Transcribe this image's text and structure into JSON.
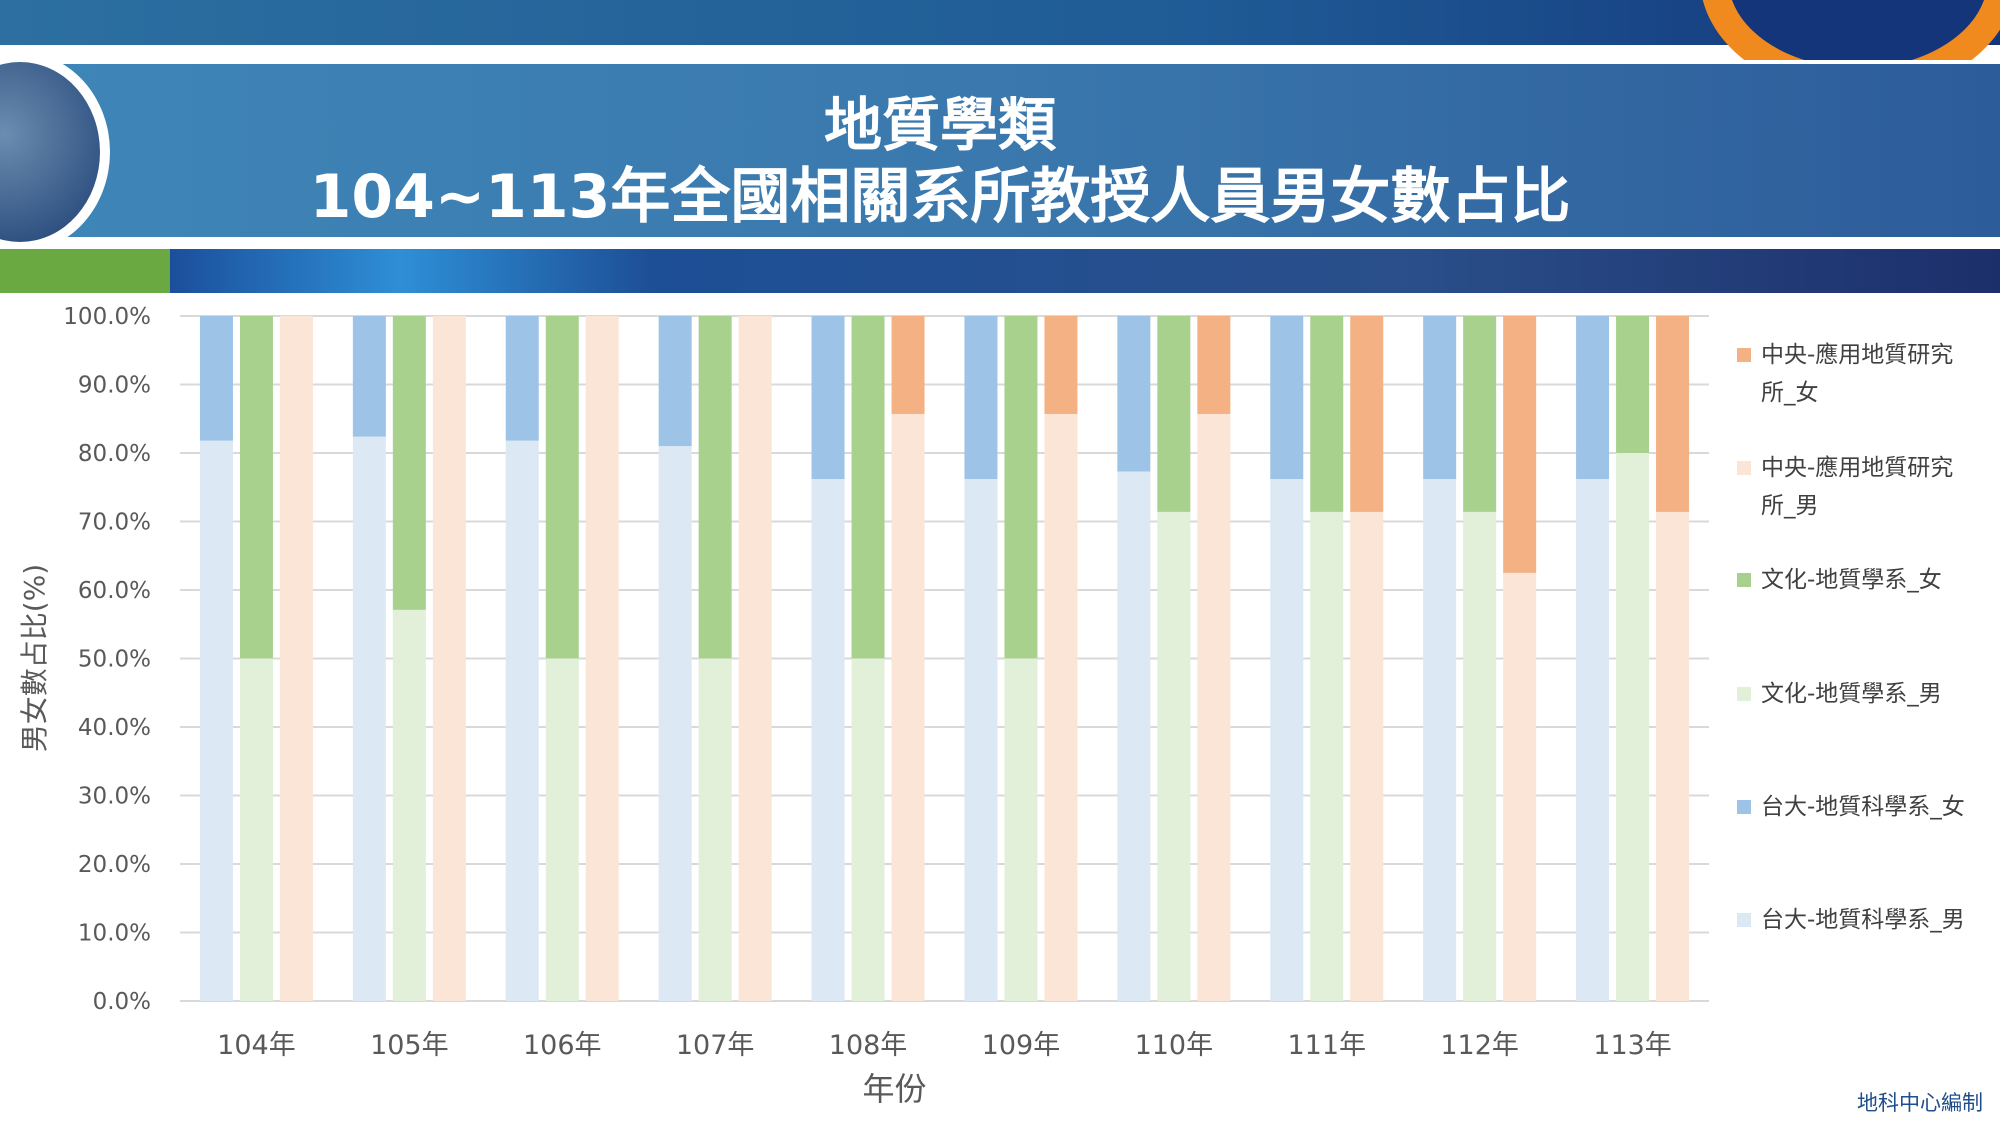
{
  "header": {
    "title_line1": "地質學類",
    "title_line2": "104~113年全國相關系所教授人員男女數占比"
  },
  "footer": "地科中心編制",
  "chart_data": {
    "type": "bar",
    "stacked": "percent",
    "title": "地質學類 104~113年全國相關系所教授人員男女數占比",
    "xlabel": "年份",
    "ylabel": "男女數占比(%)",
    "ylim": [
      0,
      100
    ],
    "yticks": [
      "0.0%",
      "10.0%",
      "20.0%",
      "30.0%",
      "40.0%",
      "50.0%",
      "60.0%",
      "70.0%",
      "80.0%",
      "90.0%",
      "100.0%"
    ],
    "grid": true,
    "legend_position": "right",
    "categories": [
      "104年",
      "105年",
      "106年",
      "107年",
      "108年",
      "109年",
      "110年",
      "111年",
      "112年",
      "113年"
    ],
    "groups": [
      {
        "name": "台大-地質科學系",
        "series": [
          {
            "name": "台大-地質科學系_男",
            "color": "#dde8f5",
            "values": [
              81.8,
              82.4,
              81.8,
              81.0,
              76.2,
              76.2,
              77.3,
              76.2,
              76.2,
              76.2
            ]
          },
          {
            "name": "台大-地質科學系_女",
            "color": "#9dc3e6",
            "values": [
              18.2,
              17.6,
              18.2,
              19.0,
              23.8,
              23.8,
              22.7,
              23.8,
              23.8,
              23.8
            ]
          }
        ]
      },
      {
        "name": "文化-地質學系",
        "series": [
          {
            "name": "文化-地質學系_男",
            "color": "#e2efd9",
            "values": [
              50,
              57.1,
              50,
              50,
              50,
              50,
              71.4,
              71.4,
              71.4,
              80
            ]
          },
          {
            "name": "文化-地質學系_女",
            "color": "#a9d18e",
            "values": [
              50,
              42.9,
              50,
              50,
              50,
              50,
              28.6,
              28.6,
              28.6,
              20
            ]
          }
        ]
      },
      {
        "name": "中央-應用地質研究所",
        "series": [
          {
            "name": "中央-應用地質研究所_男",
            "color": "#fbe5d6",
            "values": [
              100,
              100,
              100,
              100,
              85.7,
              85.7,
              85.7,
              71.4,
              62.5,
              71.4
            ]
          },
          {
            "name": "中央-應用地質研究所_女",
            "color": "#f4b183",
            "values": [
              0,
              0,
              0,
              0,
              14.3,
              14.3,
              14.3,
              28.6,
              37.5,
              28.6
            ]
          }
        ]
      }
    ],
    "legend": [
      {
        "line1": "中央-應用地質研究",
        "line2": "所_女",
        "color": "#f4b183"
      },
      {
        "line1": "中央-應用地質研究",
        "line2": "所_男",
        "color": "#fbe5d6"
      },
      {
        "line1": "文化-地質學系_女",
        "line2": "",
        "color": "#a9d18e"
      },
      {
        "line1": "文化-地質學系_男",
        "line2": "",
        "color": "#e2efd9"
      },
      {
        "line1": "台大-地質科學系_女",
        "line2": "",
        "color": "#9dc3e6"
      },
      {
        "line1": "台大-地質科學系_男",
        "line2": "",
        "color": "#dde8f5"
      }
    ]
  }
}
